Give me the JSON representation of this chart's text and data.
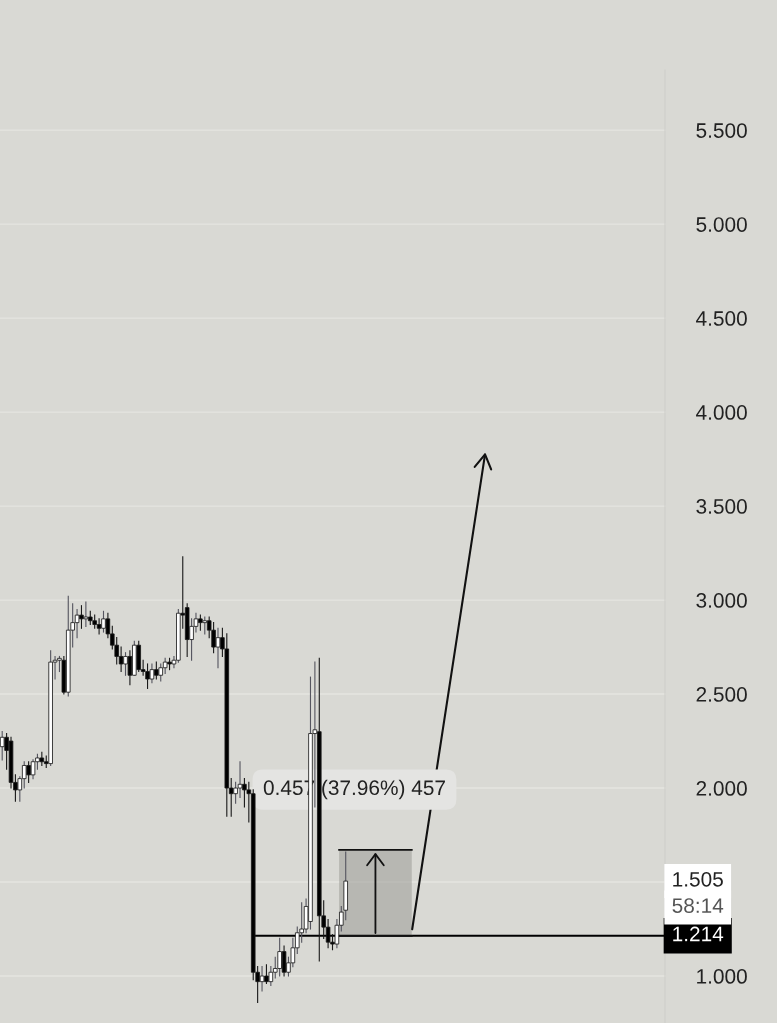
{
  "chart_data": {
    "type": "candlestick",
    "categories": [
      null,
      null,
      null,
      null,
      null,
      null,
      null,
      null,
      null,
      null,
      null,
      null,
      null,
      null,
      null,
      null,
      null,
      null,
      null,
      null,
      null,
      null,
      null,
      null,
      null,
      null,
      null,
      null,
      null,
      null,
      null,
      null,
      null,
      null,
      null,
      null,
      null,
      null,
      null,
      null,
      null,
      null,
      null,
      null,
      null,
      null,
      null,
      null,
      null,
      null,
      null,
      null,
      null,
      null,
      null,
      null,
      null,
      null,
      null,
      null,
      null,
      null,
      null,
      null,
      null,
      null,
      null,
      null,
      null,
      null,
      null,
      null,
      null,
      null,
      null,
      null,
      null,
      null,
      null,
      null,
      null,
      null,
      null,
      null,
      null,
      null,
      null,
      null,
      null,
      null,
      null,
      null,
      null,
      null,
      null,
      null,
      null,
      null,
      null,
      null,
      null,
      null,
      null,
      null,
      null,
      null,
      null,
      null,
      null,
      null,
      null,
      null,
      null,
      null,
      null,
      null,
      null,
      null,
      null,
      null,
      null,
      null,
      null,
      null,
      null,
      null,
      null,
      null,
      null,
      null,
      null,
      null,
      null,
      null,
      null,
      null,
      null,
      null,
      null,
      null,
      null,
      null,
      null,
      null,
      null,
      null,
      null,
      null,
      null,
      null,
      null
    ],
    "ohlc": [
      [
        2.22,
        2.3,
        2.15,
        2.27
      ],
      [
        2.27,
        2.29,
        2.1,
        2.2
      ],
      [
        2.25,
        2.27,
        2.0,
        2.03
      ],
      [
        2.03,
        2.07,
        1.93,
        1.99
      ],
      [
        1.99,
        2.06,
        1.93,
        2.05
      ],
      [
        2.05,
        2.14,
        2.0,
        2.12
      ],
      [
        2.12,
        2.14,
        2.03,
        2.07
      ],
      [
        2.07,
        2.15,
        2.05,
        2.14
      ],
      [
        2.14,
        2.18,
        2.1,
        2.16
      ],
      [
        2.16,
        2.19,
        2.12,
        2.14
      ],
      [
        2.14,
        2.17,
        2.11,
        2.13
      ],
      [
        2.13,
        2.73,
        2.12,
        2.67
      ],
      [
        2.67,
        2.7,
        2.58,
        2.68
      ],
      [
        2.68,
        2.7,
        2.62,
        2.69
      ],
      [
        2.68,
        2.7,
        2.5,
        2.51
      ],
      [
        2.51,
        3.02,
        2.49,
        2.84
      ],
      [
        2.84,
        2.98,
        2.75,
        2.88
      ],
      [
        2.88,
        2.95,
        2.8,
        2.92
      ],
      [
        2.92,
        2.97,
        2.85,
        2.9
      ],
      [
        2.9,
        2.99,
        2.86,
        2.91
      ],
      [
        2.91,
        2.94,
        2.87,
        2.89
      ],
      [
        2.89,
        2.92,
        2.85,
        2.87
      ],
      [
        2.87,
        2.9,
        2.82,
        2.85
      ],
      [
        2.85,
        2.94,
        2.83,
        2.9
      ],
      [
        2.9,
        2.93,
        2.8,
        2.82
      ],
      [
        2.82,
        2.86,
        2.74,
        2.76
      ],
      [
        2.76,
        2.8,
        2.66,
        2.7
      ],
      [
        2.7,
        2.75,
        2.62,
        2.66
      ],
      [
        2.66,
        2.72,
        2.6,
        2.7
      ],
      [
        2.7,
        2.73,
        2.55,
        2.6
      ],
      [
        2.6,
        2.78,
        2.6,
        2.76
      ],
      [
        2.76,
        2.78,
        2.62,
        2.63
      ],
      [
        2.63,
        2.68,
        2.6,
        2.62
      ],
      [
        2.62,
        2.66,
        2.53,
        2.58
      ],
      [
        2.58,
        2.66,
        2.56,
        2.63
      ],
      [
        2.63,
        2.67,
        2.58,
        2.6
      ],
      [
        2.6,
        2.66,
        2.57,
        2.64
      ],
      [
        2.64,
        2.69,
        2.61,
        2.67
      ],
      [
        2.67,
        2.69,
        2.63,
        2.66
      ],
      [
        2.66,
        2.7,
        2.64,
        2.68
      ],
      [
        2.68,
        2.95,
        2.67,
        2.93
      ],
      [
        2.93,
        3.23,
        2.85,
        2.92
      ],
      [
        2.96,
        2.98,
        2.7,
        2.79
      ],
      [
        2.79,
        2.9,
        2.68,
        2.86
      ],
      [
        2.86,
        2.93,
        2.83,
        2.9
      ],
      [
        2.9,
        2.92,
        2.84,
        2.88
      ],
      [
        2.88,
        2.91,
        2.82,
        2.89
      ],
      [
        2.89,
        2.91,
        2.8,
        2.84
      ],
      [
        2.84,
        2.88,
        2.72,
        2.75
      ],
      [
        2.75,
        2.85,
        2.64,
        2.8
      ],
      [
        2.8,
        2.85,
        2.7,
        2.74
      ],
      [
        2.74,
        2.82,
        1.85,
        2.0
      ],
      [
        2.0,
        2.05,
        1.85,
        1.97
      ],
      [
        1.97,
        2.03,
        1.92,
        2.0
      ],
      [
        2.0,
        2.14,
        1.95,
        2.02
      ],
      [
        2.02,
        2.05,
        1.9,
        1.99
      ],
      [
        1.99,
        2.03,
        1.82,
        1.97
      ],
      [
        1.97,
        1.99,
        0.98,
        1.02
      ],
      [
        1.02,
        1.05,
        0.86,
        0.97
      ],
      [
        0.97,
        1.05,
        0.92,
        1.0
      ],
      [
        1.0,
        1.06,
        0.96,
        0.97
      ],
      [
        0.97,
        1.05,
        0.95,
        1.02
      ],
      [
        1.02,
        1.1,
        0.99,
        1.04
      ],
      [
        1.04,
        1.2,
        1.0,
        1.13
      ],
      [
        1.13,
        1.16,
        1.0,
        1.02
      ],
      [
        1.02,
        1.1,
        1.0,
        1.07
      ],
      [
        1.07,
        1.2,
        1.05,
        1.15
      ],
      [
        1.15,
        1.26,
        1.12,
        1.23
      ],
      [
        1.23,
        1.39,
        1.18,
        1.25
      ],
      [
        1.25,
        1.41,
        1.23,
        1.37
      ],
      [
        1.29,
        2.59,
        1.25,
        2.29
      ],
      [
        2.29,
        2.67,
        1.9,
        2.31
      ],
      [
        2.3,
        2.69,
        1.08,
        1.32
      ],
      [
        1.32,
        1.4,
        1.2,
        1.26
      ],
      [
        1.26,
        1.3,
        1.15,
        1.18
      ],
      [
        1.18,
        1.22,
        1.14,
        1.17
      ],
      [
        1.17,
        1.3,
        1.15,
        1.27
      ],
      [
        1.27,
        1.37,
        1.24,
        1.34
      ],
      [
        1.35,
        1.66,
        1.3,
        1.505
      ],
      null,
      null,
      null,
      null,
      null,
      null,
      null,
      null,
      null,
      null,
      null,
      null,
      null,
      null,
      null,
      null,
      null,
      null,
      null,
      null,
      null,
      null,
      null,
      null,
      null,
      null,
      null,
      null,
      null,
      null,
      null,
      null,
      null,
      null,
      null,
      null,
      null,
      null,
      null,
      null,
      null,
      null,
      null,
      null,
      null,
      null,
      null,
      null,
      null,
      null,
      null,
      null,
      null,
      null,
      null,
      null,
      null,
      null,
      null,
      null,
      null,
      null,
      null,
      null,
      null,
      null,
      null,
      null,
      null,
      null,
      null,
      null
    ],
    "ylim": [
      0.75,
      5.82
    ],
    "yticks": [
      {
        "value": 1,
        "label": "1.000"
      },
      {
        "value": 1.5,
        "label": null
      },
      {
        "value": 2,
        "label": "2.000"
      },
      {
        "value": 2.5,
        "label": "2.500"
      },
      {
        "value": 3,
        "label": "3.000"
      },
      {
        "value": 3.5,
        "label": "3.500"
      },
      {
        "value": 4,
        "label": "4.000"
      },
      {
        "value": 4.5,
        "label": "4.500"
      },
      {
        "value": 5,
        "label": "5.000"
      },
      {
        "value": 5.5,
        "label": "5.500"
      }
    ],
    "grid": "y",
    "ref_lines": [
      {
        "axis": "y",
        "value": 1.214,
        "label": "1.214",
        "color": "#000000"
      }
    ],
    "annotations": [
      "0.457 (37.96%) 457",
      "1.505",
      "58:14"
    ]
  }
}
